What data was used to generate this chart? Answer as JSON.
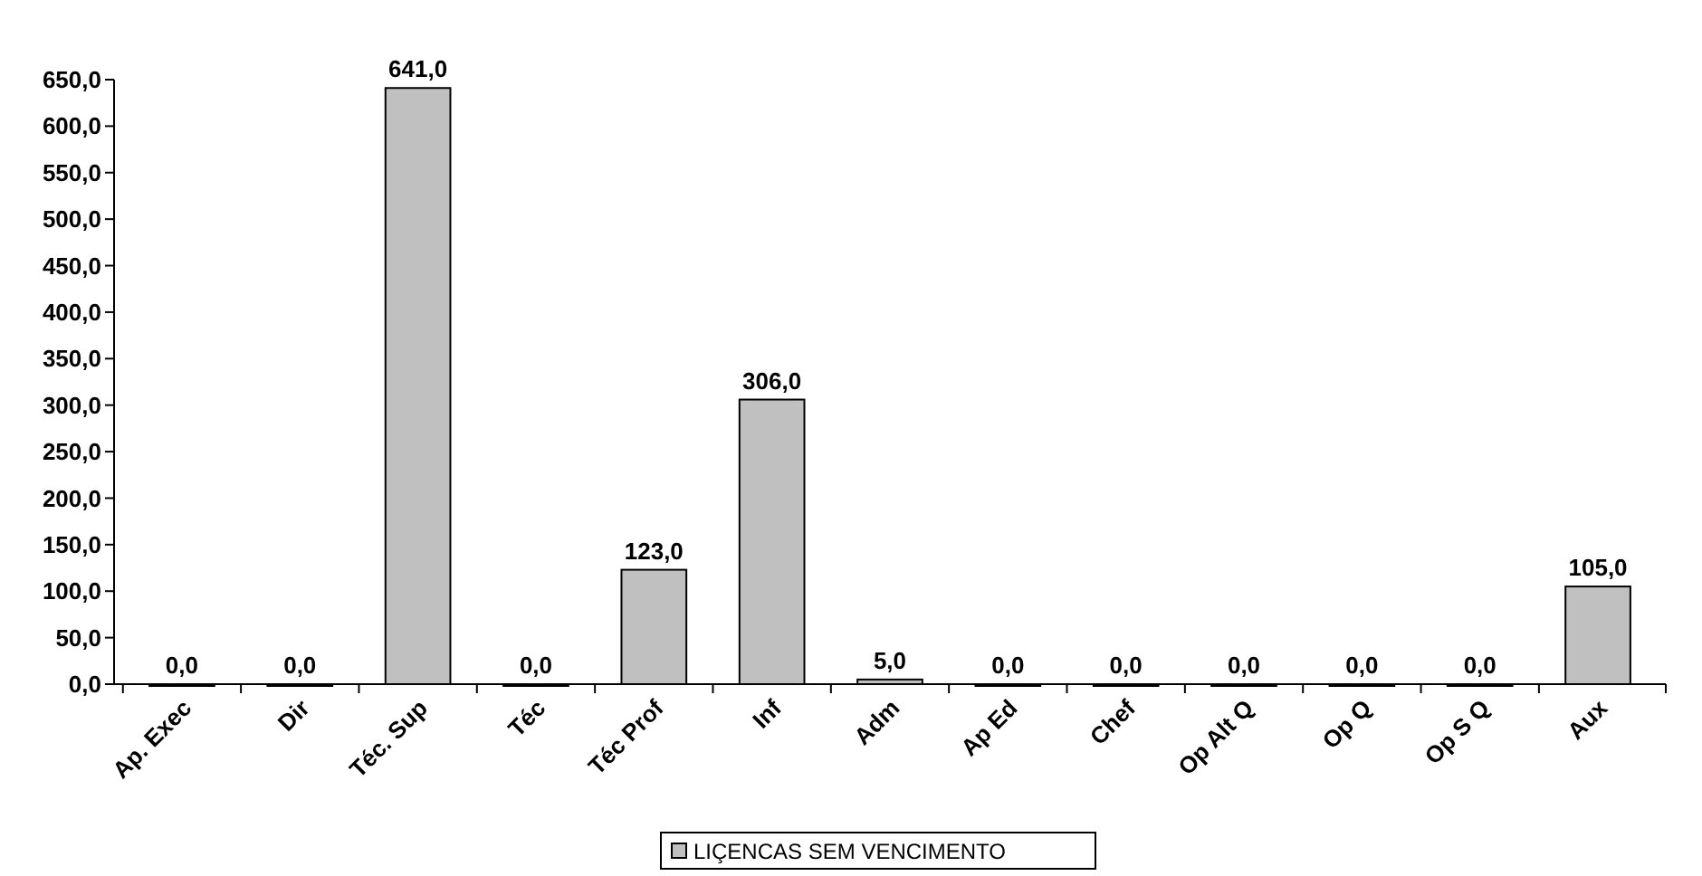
{
  "chart_data": {
    "type": "bar",
    "categories": [
      "Ap. Exec",
      "Dir",
      "Téc. Sup",
      "Téc",
      "Téc Prof",
      "Inf",
      "Adm",
      "Ap Ed",
      "Chef",
      "Op Alt Q",
      "Op Q",
      "Op S Q",
      "Aux"
    ],
    "series": [
      {
        "name": "LIÇENCAS SEM VENCIMENTO",
        "color": "#c0c0c0",
        "values": [
          0,
          0,
          641,
          0,
          123,
          306,
          5,
          0,
          0,
          0,
          0,
          0,
          105
        ],
        "value_labels": [
          "0,0",
          "0,0",
          "641,0",
          "0,0",
          "123,0",
          "306,0",
          "5,0",
          "0,0",
          "0,0",
          "0,0",
          "0,0",
          "0,0",
          "105,0"
        ]
      }
    ],
    "ylim": [
      0,
      650
    ],
    "yticks": [
      {
        "value": 0,
        "label": "0,0"
      },
      {
        "value": 50,
        "label": "50,0"
      },
      {
        "value": 100,
        "label": "100,0"
      },
      {
        "value": 150,
        "label": "150,0"
      },
      {
        "value": 200,
        "label": "200,0"
      },
      {
        "value": 250,
        "label": "250,0"
      },
      {
        "value": 300,
        "label": "300,0"
      },
      {
        "value": 350,
        "label": "350,0"
      },
      {
        "value": 400,
        "label": "400,0"
      },
      {
        "value": 450,
        "label": "450,0"
      },
      {
        "value": 500,
        "label": "500,0"
      },
      {
        "value": 550,
        "label": "550,0"
      },
      {
        "value": 600,
        "label": "600,0"
      },
      {
        "value": 650,
        "label": "650,0"
      }
    ],
    "grid": false,
    "legend": "bottom"
  }
}
